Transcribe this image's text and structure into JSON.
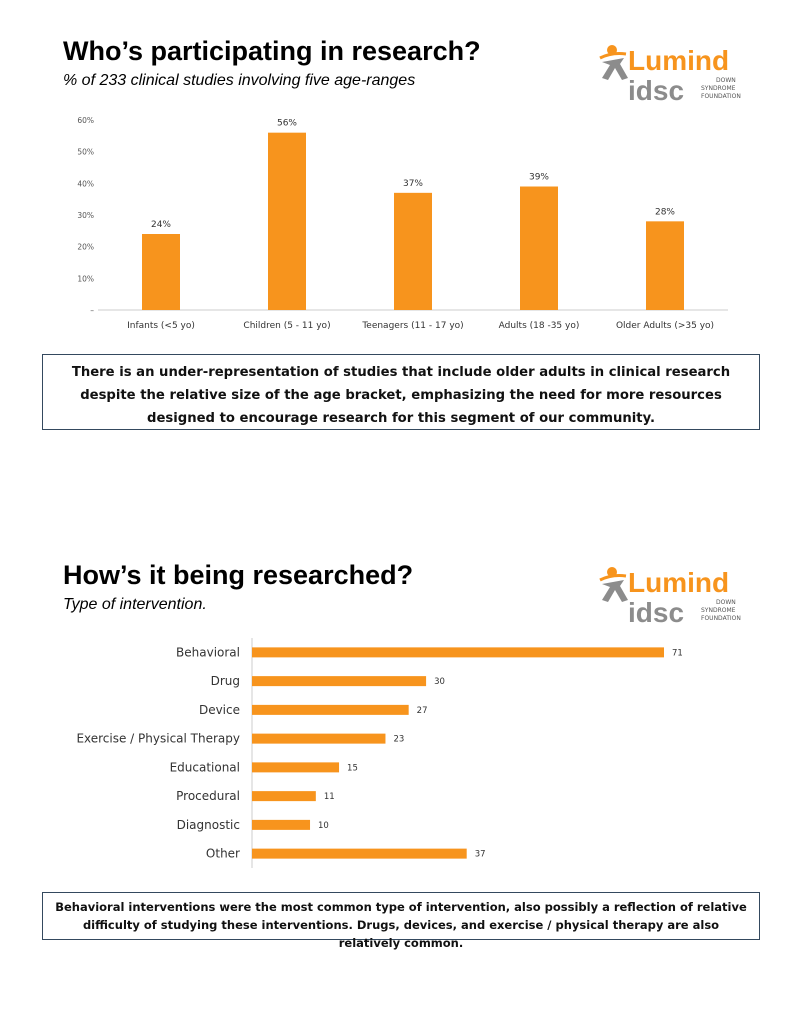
{
  "colors": {
    "bar": "#F7941D",
    "axis": "#cccccc",
    "logo_orange": "#F7941D",
    "logo_gray": "#8C8C8C"
  },
  "logo": {
    "icon": "lumind-idsc-logo",
    "text_top": "Lumind",
    "text_bottom": "idsc",
    "tagline_1": "DOWN",
    "tagline_2": "SYNDROME",
    "tagline_3": "FOUNDATION"
  },
  "section1": {
    "title": "Who’s participating in research?",
    "subtitle": "% of 233 clinical studies involving five age-ranges",
    "callout": "There is an under-representation of studies that include older adults in clinical research despite the relative size of the age bracket, emphasizing the need for more resources designed to encourage research for this segment of our community."
  },
  "section2": {
    "title": "How’s it being researched?",
    "subtitle": "Type of intervention.",
    "callout": "Behavioral interventions were the most common type of intervention, also possibly a reflection of relative difficulty of studying these interventions. Drugs, devices, and exercise / physical therapy are also relatively common."
  },
  "chart_data": [
    {
      "type": "bar",
      "orientation": "vertical",
      "categories": [
        "Infants (<5 yo)",
        "Children (5 - 11 yo)",
        "Teenagers (11 - 17 yo)",
        "Adults (18 -35 yo)",
        "Older Adults (>35 yo)"
      ],
      "values": [
        24,
        56,
        37,
        39,
        28
      ],
      "data_labels": [
        "24%",
        "56%",
        "37%",
        "39%",
        "28%"
      ],
      "yticks": [
        "–",
        "10%",
        "20%",
        "30%",
        "40%",
        "50%",
        "60%"
      ],
      "ylim": [
        0,
        60
      ],
      "grid": false
    },
    {
      "type": "bar",
      "orientation": "horizontal",
      "categories": [
        "Behavioral",
        "Drug",
        "Device",
        "Exercise / Physical Therapy",
        "Educational",
        "Procedural",
        "Diagnostic",
        "Other"
      ],
      "values": [
        71,
        30,
        27,
        23,
        15,
        11,
        10,
        37
      ],
      "data_labels": [
        "71",
        "30",
        "27",
        "23",
        "15",
        "11",
        "10",
        "37"
      ],
      "xlim": [
        0,
        71
      ],
      "grid": false
    }
  ]
}
